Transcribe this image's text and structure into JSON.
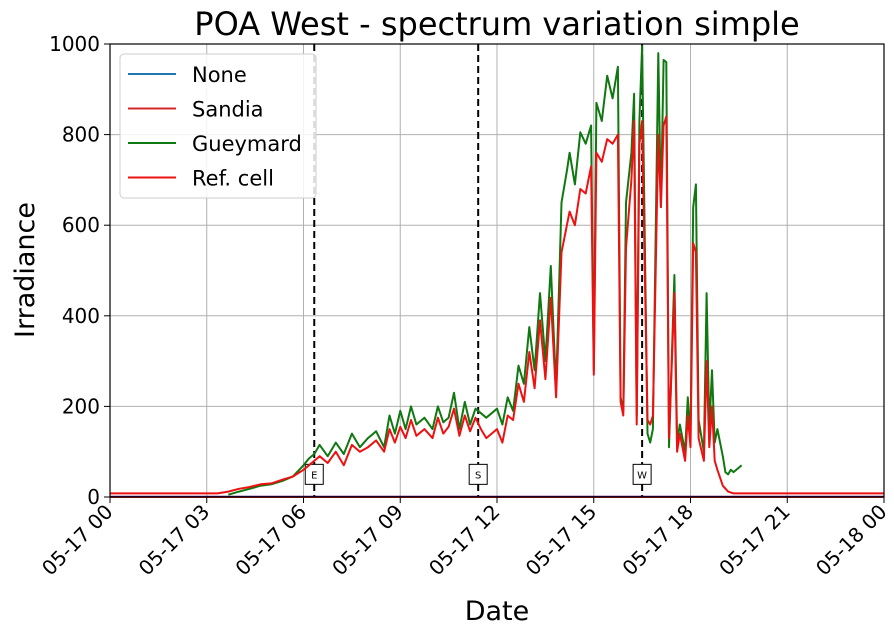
{
  "chart_data": {
    "type": "line",
    "title": "POA West - spectrum variation simple",
    "xlabel": "Date",
    "ylabel": "Irradiance",
    "xlim": [
      "2023-05-17T00:00",
      "2023-05-18T00:00"
    ],
    "ylim": [
      0,
      1000
    ],
    "x_ticks": [
      "05-17 00",
      "05-17 03",
      "05-17 06",
      "05-17 09",
      "05-17 12",
      "05-17 15",
      "05-17 18",
      "05-17 21",
      "05-18 00"
    ],
    "y_ticks": [
      0,
      200,
      400,
      600,
      800,
      1000
    ],
    "grid": true,
    "legend_position": "top-left",
    "markers": [
      {
        "label": "E",
        "time": "06:20"
      },
      {
        "label": "S",
        "time": "11:25"
      },
      {
        "label": "W",
        "time": "16:30"
      }
    ],
    "series": [
      {
        "name": "None",
        "color": "#1f77b4",
        "points": [
          [
            "00:00",
            0
          ],
          [
            "24:00",
            0
          ]
        ]
      },
      {
        "name": "Sandia",
        "color": "#d62728",
        "points": [
          [
            "00:00",
            0
          ],
          [
            "24:00",
            0
          ]
        ]
      },
      {
        "name": "Gueymard",
        "color": "#107810",
        "points": [
          [
            "03:40",
            5
          ],
          [
            "04:00",
            12
          ],
          [
            "04:20",
            18
          ],
          [
            "04:40",
            25
          ],
          [
            "05:00",
            28
          ],
          [
            "05:20",
            35
          ],
          [
            "05:40",
            45
          ],
          [
            "06:00",
            70
          ],
          [
            "06:10",
            85
          ],
          [
            "06:20",
            95
          ],
          [
            "06:30",
            115
          ],
          [
            "06:45",
            90
          ],
          [
            "07:00",
            120
          ],
          [
            "07:15",
            95
          ],
          [
            "07:30",
            140
          ],
          [
            "07:45",
            110
          ],
          [
            "08:00",
            130
          ],
          [
            "08:15",
            145
          ],
          [
            "08:30",
            110
          ],
          [
            "08:40",
            180
          ],
          [
            "08:50",
            140
          ],
          [
            "09:00",
            190
          ],
          [
            "09:10",
            150
          ],
          [
            "09:20",
            200
          ],
          [
            "09:30",
            160
          ],
          [
            "09:45",
            175
          ],
          [
            "10:00",
            150
          ],
          [
            "10:10",
            200
          ],
          [
            "10:20",
            165
          ],
          [
            "10:30",
            175
          ],
          [
            "10:40",
            230
          ],
          [
            "10:50",
            150
          ],
          [
            "11:00",
            210
          ],
          [
            "11:10",
            160
          ],
          [
            "11:20",
            195
          ],
          [
            "11:30",
            185
          ],
          [
            "11:40",
            175
          ],
          [
            "12:00",
            195
          ],
          [
            "12:10",
            160
          ],
          [
            "12:20",
            220
          ],
          [
            "12:30",
            190
          ],
          [
            "12:40",
            290
          ],
          [
            "12:50",
            250
          ],
          [
            "13:00",
            375
          ],
          [
            "13:10",
            280
          ],
          [
            "13:20",
            450
          ],
          [
            "13:30",
            300
          ],
          [
            "13:40",
            510
          ],
          [
            "13:50",
            240
          ],
          [
            "14:00",
            650
          ],
          [
            "14:10",
            720
          ],
          [
            "14:15",
            760
          ],
          [
            "14:25",
            690
          ],
          [
            "14:35",
            805
          ],
          [
            "14:45",
            780
          ],
          [
            "14:55",
            820
          ],
          [
            "15:00",
            280
          ],
          [
            "15:05",
            870
          ],
          [
            "15:15",
            830
          ],
          [
            "15:25",
            930
          ],
          [
            "15:35",
            880
          ],
          [
            "15:45",
            950
          ],
          [
            "15:50",
            220
          ],
          [
            "15:55",
            190
          ],
          [
            "16:00",
            650
          ],
          [
            "16:10",
            760
          ],
          [
            "16:15",
            890
          ],
          [
            "16:20",
            180
          ],
          [
            "16:25",
            830
          ],
          [
            "16:30",
            995
          ],
          [
            "16:40",
            140
          ],
          [
            "16:45",
            120
          ],
          [
            "16:50",
            150
          ],
          [
            "17:00",
            980
          ],
          [
            "17:05",
            640
          ],
          [
            "17:10",
            965
          ],
          [
            "17:15",
            960
          ],
          [
            "17:20",
            110
          ],
          [
            "17:30",
            490
          ],
          [
            "17:35",
            120
          ],
          [
            "17:40",
            160
          ],
          [
            "17:50",
            100
          ],
          [
            "17:55",
            220
          ],
          [
            "18:00",
            130
          ],
          [
            "18:05",
            640
          ],
          [
            "18:10",
            690
          ],
          [
            "18:15",
            170
          ],
          [
            "18:25",
            100
          ],
          [
            "18:30",
            450
          ],
          [
            "18:35",
            150
          ],
          [
            "18:40",
            280
          ],
          [
            "18:45",
            120
          ],
          [
            "18:50",
            150
          ],
          [
            "19:00",
            90
          ],
          [
            "19:05",
            55
          ],
          [
            "19:10",
            50
          ],
          [
            "19:15",
            60
          ],
          [
            "19:20",
            55
          ],
          [
            "19:30",
            65
          ],
          [
            "19:35",
            70
          ]
        ]
      },
      {
        "name": "Ref. cell",
        "color": "#ee1111",
        "points": [
          [
            "00:00",
            8
          ],
          [
            "03:20",
            8
          ],
          [
            "03:40",
            12
          ],
          [
            "04:00",
            18
          ],
          [
            "04:20",
            22
          ],
          [
            "04:40",
            28
          ],
          [
            "05:00",
            30
          ],
          [
            "05:20",
            38
          ],
          [
            "05:40",
            45
          ],
          [
            "06:00",
            60
          ],
          [
            "06:10",
            70
          ],
          [
            "06:20",
            80
          ],
          [
            "06:30",
            90
          ],
          [
            "06:45",
            75
          ],
          [
            "07:00",
            100
          ],
          [
            "07:15",
            70
          ],
          [
            "07:30",
            115
          ],
          [
            "07:45",
            100
          ],
          [
            "08:00",
            110
          ],
          [
            "08:15",
            125
          ],
          [
            "08:30",
            100
          ],
          [
            "08:40",
            150
          ],
          [
            "08:50",
            120
          ],
          [
            "09:00",
            155
          ],
          [
            "09:10",
            130
          ],
          [
            "09:20",
            170
          ],
          [
            "09:30",
            135
          ],
          [
            "09:45",
            150
          ],
          [
            "10:00",
            130
          ],
          [
            "10:10",
            175
          ],
          [
            "10:20",
            140
          ],
          [
            "10:30",
            155
          ],
          [
            "10:40",
            195
          ],
          [
            "10:50",
            135
          ],
          [
            "11:00",
            180
          ],
          [
            "11:10",
            145
          ],
          [
            "11:20",
            175
          ],
          [
            "11:30",
            150
          ],
          [
            "11:40",
            130
          ],
          [
            "12:00",
            150
          ],
          [
            "12:10",
            120
          ],
          [
            "12:20",
            180
          ],
          [
            "12:30",
            170
          ],
          [
            "12:40",
            250
          ],
          [
            "12:50",
            210
          ],
          [
            "13:00",
            320
          ],
          [
            "13:10",
            240
          ],
          [
            "13:20",
            390
          ],
          [
            "13:30",
            260
          ],
          [
            "13:40",
            440
          ],
          [
            "13:50",
            220
          ],
          [
            "14:00",
            540
          ],
          [
            "14:10",
            600
          ],
          [
            "14:15",
            630
          ],
          [
            "14:25",
            600
          ],
          [
            "14:35",
            680
          ],
          [
            "14:45",
            670
          ],
          [
            "14:55",
            730
          ],
          [
            "15:00",
            270
          ],
          [
            "15:05",
            760
          ],
          [
            "15:15",
            740
          ],
          [
            "15:25",
            790
          ],
          [
            "15:35",
            780
          ],
          [
            "15:45",
            800
          ],
          [
            "15:50",
            210
          ],
          [
            "15:55",
            180
          ],
          [
            "16:00",
            550
          ],
          [
            "16:10",
            700
          ],
          [
            "16:15",
            830
          ],
          [
            "16:20",
            160
          ],
          [
            "16:25",
            780
          ],
          [
            "16:30",
            830
          ],
          [
            "16:40",
            170
          ],
          [
            "16:45",
            160
          ],
          [
            "16:50",
            180
          ],
          [
            "17:00",
            800
          ],
          [
            "17:05",
            640
          ],
          [
            "17:10",
            820
          ],
          [
            "17:15",
            840
          ],
          [
            "17:20",
            130
          ],
          [
            "17:30",
            450
          ],
          [
            "17:35",
            100
          ],
          [
            "17:40",
            140
          ],
          [
            "17:50",
            80
          ],
          [
            "17:55",
            180
          ],
          [
            "18:00",
            110
          ],
          [
            "18:05",
            560
          ],
          [
            "18:10",
            540
          ],
          [
            "18:15",
            130
          ],
          [
            "18:25",
            80
          ],
          [
            "18:30",
            300
          ],
          [
            "18:35",
            110
          ],
          [
            "18:40",
            200
          ],
          [
            "18:45",
            80
          ],
          [
            "18:50",
            60
          ],
          [
            "19:00",
            25
          ],
          [
            "19:10",
            12
          ],
          [
            "19:20",
            8
          ],
          [
            "24:00",
            8
          ]
        ]
      }
    ]
  }
}
